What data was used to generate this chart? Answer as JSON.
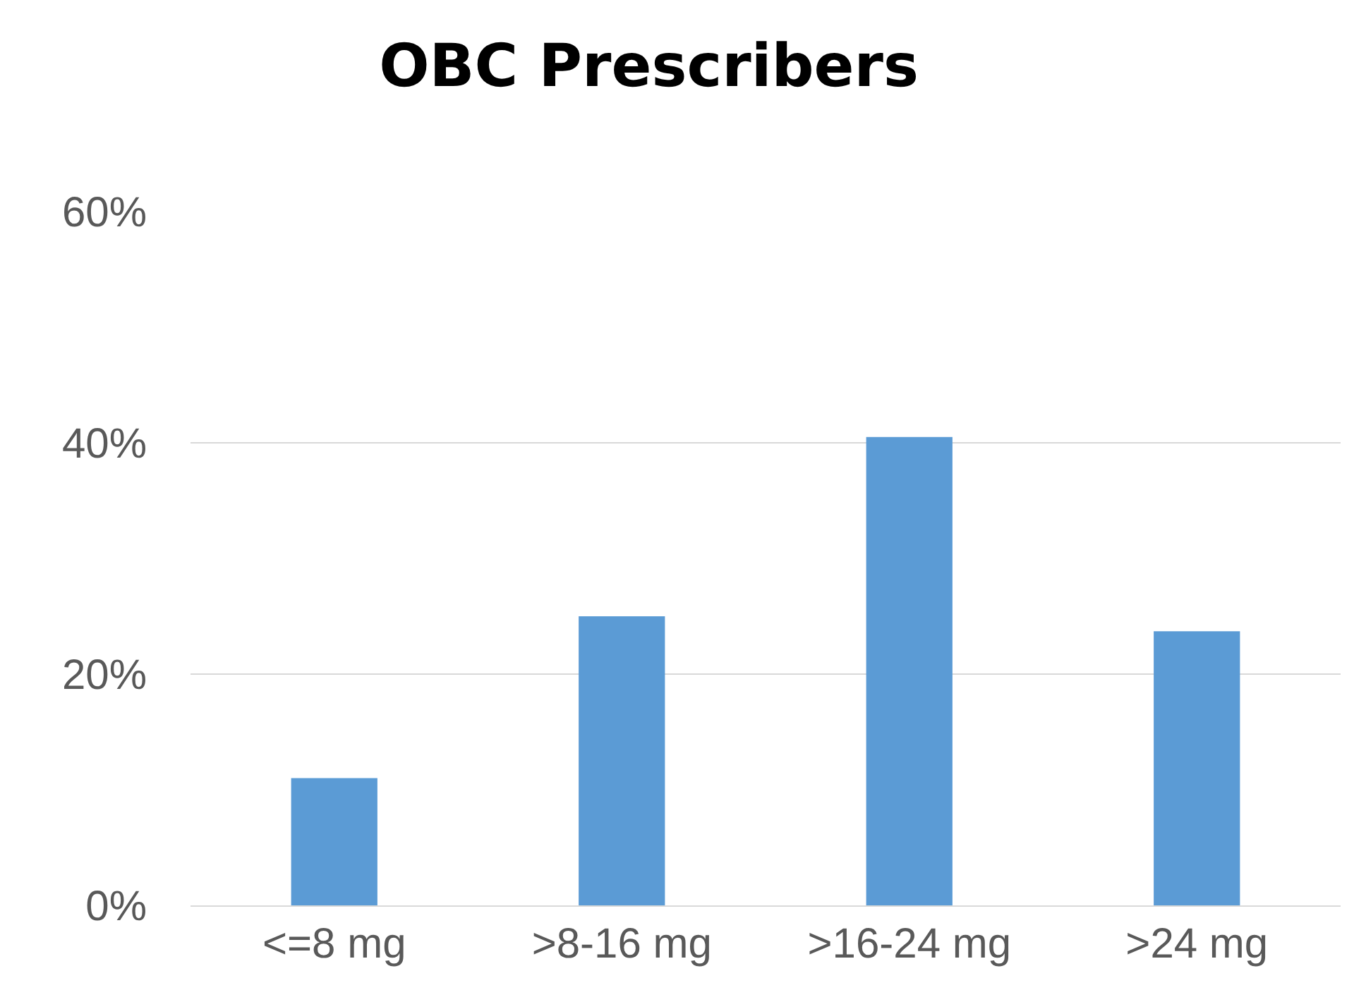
{
  "chart_data": {
    "type": "bar",
    "title": "OBC Prescribers",
    "categories": [
      "<=8 mg",
      ">8-16 mg",
      ">16-24 mg",
      ">24 mg"
    ],
    "values": [
      11,
      25,
      40.5,
      23.7
    ],
    "color": "#5b9bd5",
    "ylim": [
      0,
      60
    ],
    "yticks": [
      {
        "value": 0,
        "label": "0%"
      },
      {
        "value": 20,
        "label": "20%"
      },
      {
        "value": 40,
        "label": "40%"
      },
      {
        "value": 60,
        "label": "60%"
      }
    ],
    "grid": "y"
  }
}
